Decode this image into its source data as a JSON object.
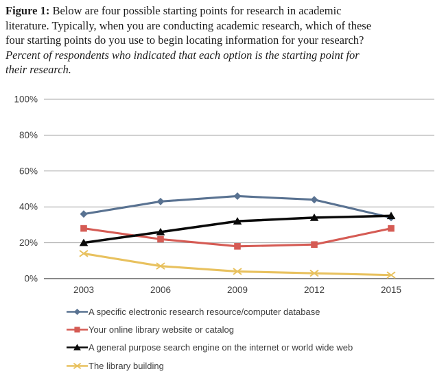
{
  "caption": {
    "label": "Figure 1:",
    "line1_rest": "Below are four possible starting points for research in academic",
    "line2": "literature. Typically, when you are conducting academic research, which of these",
    "line3": "four starting points do you use to begin locating information for your research?",
    "line4_italic": "Percent of respondents who indicated that each option is the starting point for",
    "line5_italic": "their research."
  },
  "chart_data": {
    "type": "line",
    "categories": [
      "2003",
      "2006",
      "2009",
      "2012",
      "2015"
    ],
    "series": [
      {
        "name": "A specific electronic research resource/computer database",
        "values": [
          36,
          43,
          46,
          44,
          34
        ],
        "color": "#597291",
        "marker": "diamond"
      },
      {
        "name": "Your online library website or catalog",
        "values": [
          28,
          22,
          18,
          19,
          28
        ],
        "color": "#d55b54",
        "marker": "square"
      },
      {
        "name": "A general purpose search engine on the internet or world wide web",
        "values": [
          20,
          26,
          32,
          34,
          35
        ],
        "color": "#0a0a0a",
        "marker": "triangle"
      },
      {
        "name": "The library building",
        "values": [
          14,
          7,
          4,
          3,
          2
        ],
        "color": "#e8c15e",
        "marker": "x"
      }
    ],
    "title": "",
    "xlabel": "",
    "ylabel": "",
    "ylim": [
      0,
      100
    ],
    "yticks": [
      "0%",
      "20%",
      "40%",
      "60%",
      "80%",
      "100%"
    ],
    "ytick_values": [
      0,
      20,
      40,
      60,
      80,
      100
    ],
    "grid": true,
    "legend_position": "bottom-left"
  },
  "colors": {
    "gridline": "#a5a5a5",
    "baseline": "#7a7a7a",
    "tick_text": "#3d3d3d",
    "caption_text": "#1b1b1b"
  }
}
